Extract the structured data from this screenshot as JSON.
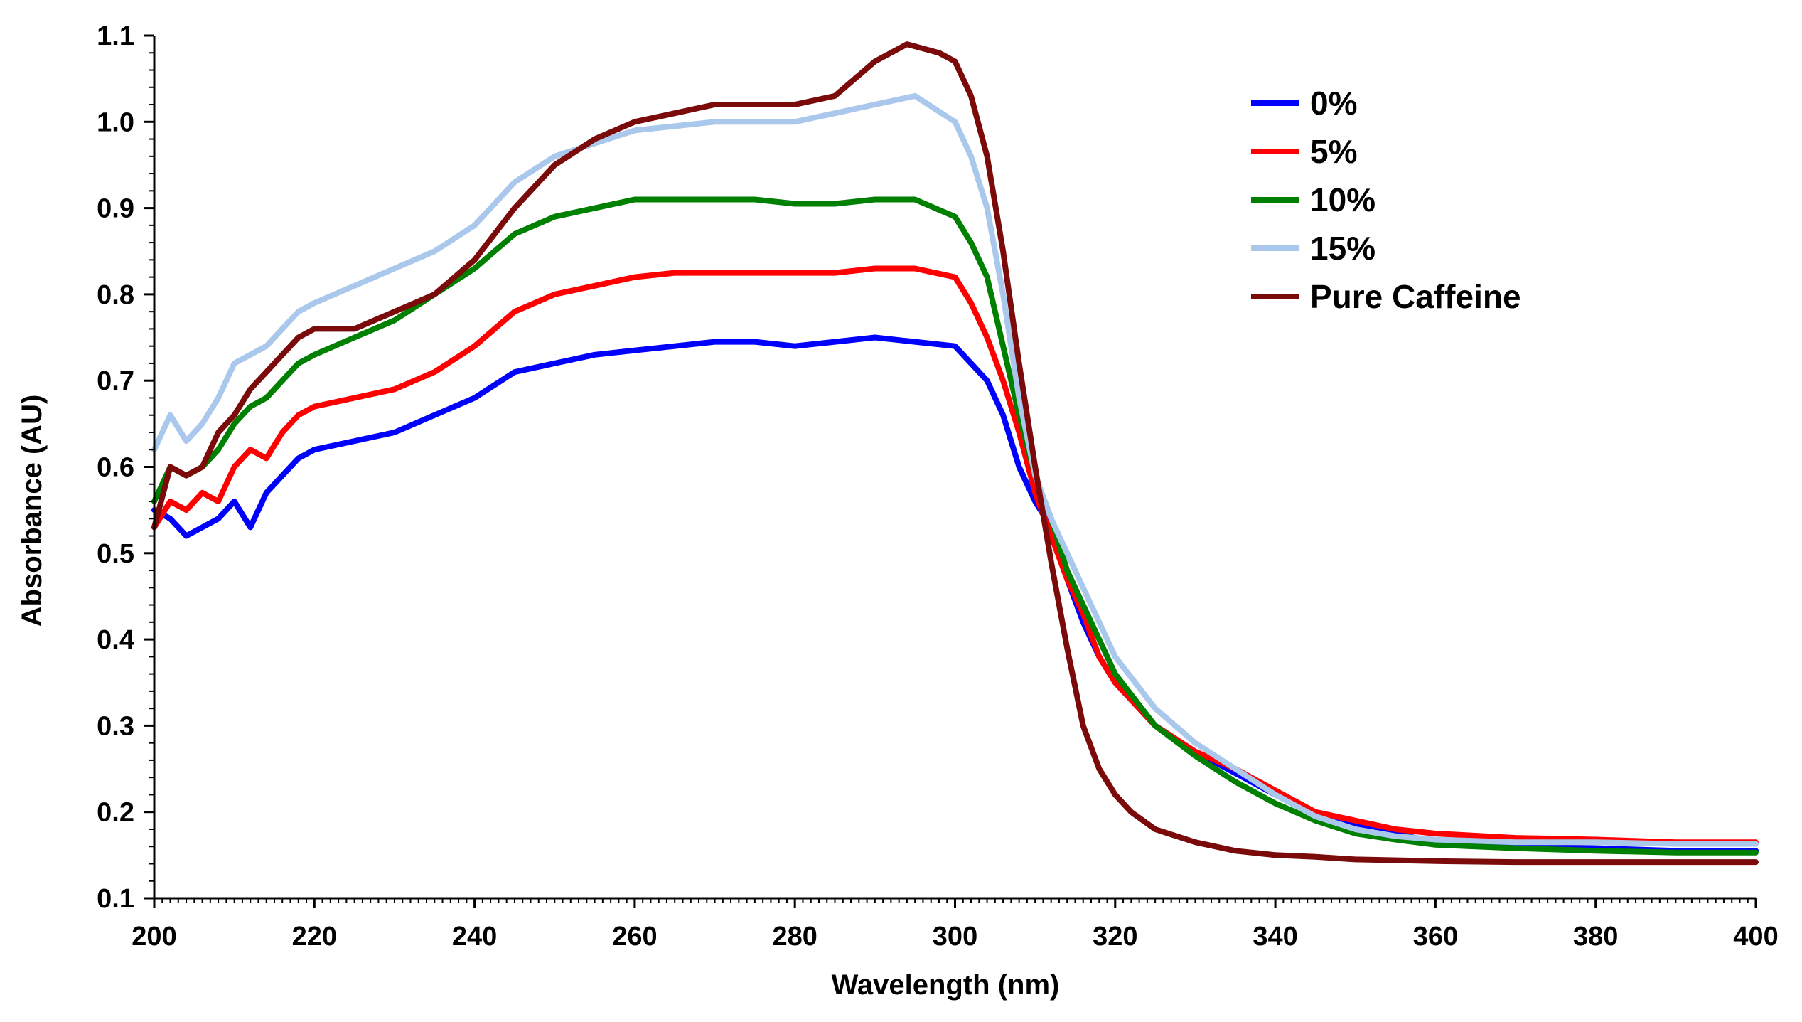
{
  "chart_data": {
    "type": "line",
    "title": "",
    "xlabel": "Wavelength (nm)",
    "ylabel": "Absorbance (AU)",
    "xlim": [
      200,
      400
    ],
    "ylim": [
      0.1,
      1.1
    ],
    "xticks": [
      200,
      220,
      240,
      260,
      280,
      300,
      320,
      340,
      360,
      380,
      400
    ],
    "xtick_labels": [
      "200",
      "220",
      "240",
      "260",
      "280",
      "300",
      "320",
      "340",
      "360",
      "380",
      "400"
    ],
    "yticks": [
      0.1,
      0.2,
      0.3,
      0.4,
      0.5,
      0.6,
      0.7,
      0.8,
      0.9,
      1.0,
      1.1
    ],
    "ytick_labels": [
      "0.1",
      "0.2",
      "0.3",
      "0.4",
      "0.5",
      "0.6",
      "0.7",
      "0.8",
      "0.9",
      "1.0",
      "1.1"
    ],
    "grid": false,
    "legend_position": "top-right",
    "series": [
      {
        "name": "0%",
        "color": "#0000FF",
        "x": [
          200,
          202,
          204,
          206,
          208,
          210,
          212,
          214,
          216,
          218,
          220,
          225,
          230,
          235,
          240,
          245,
          250,
          255,
          260,
          265,
          270,
          275,
          280,
          285,
          290,
          295,
          300,
          302,
          304,
          306,
          308,
          310,
          312,
          314,
          316,
          318,
          320,
          325,
          330,
          335,
          340,
          345,
          350,
          355,
          360,
          370,
          380,
          390,
          400
        ],
        "y": [
          0.55,
          0.54,
          0.52,
          0.53,
          0.54,
          0.56,
          0.53,
          0.57,
          0.59,
          0.61,
          0.62,
          0.63,
          0.64,
          0.66,
          0.68,
          0.71,
          0.72,
          0.73,
          0.735,
          0.74,
          0.745,
          0.745,
          0.74,
          0.745,
          0.75,
          0.745,
          0.74,
          0.72,
          0.7,
          0.66,
          0.6,
          0.56,
          0.53,
          0.47,
          0.42,
          0.38,
          0.35,
          0.3,
          0.27,
          0.245,
          0.22,
          0.2,
          0.185,
          0.175,
          0.165,
          0.16,
          0.158,
          0.155,
          0.155
        ]
      },
      {
        "name": "5%",
        "color": "#FF0000",
        "x": [
          200,
          202,
          204,
          206,
          208,
          210,
          212,
          214,
          216,
          218,
          220,
          225,
          230,
          235,
          240,
          245,
          250,
          255,
          260,
          265,
          270,
          275,
          280,
          285,
          290,
          295,
          300,
          302,
          304,
          306,
          308,
          310,
          312,
          314,
          316,
          318,
          320,
          325,
          330,
          335,
          340,
          345,
          350,
          355,
          360,
          370,
          380,
          390,
          400
        ],
        "y": [
          0.53,
          0.56,
          0.55,
          0.57,
          0.56,
          0.6,
          0.62,
          0.61,
          0.64,
          0.66,
          0.67,
          0.68,
          0.69,
          0.71,
          0.74,
          0.78,
          0.8,
          0.81,
          0.82,
          0.825,
          0.825,
          0.825,
          0.825,
          0.825,
          0.83,
          0.83,
          0.82,
          0.79,
          0.75,
          0.7,
          0.64,
          0.57,
          0.52,
          0.47,
          0.43,
          0.38,
          0.35,
          0.3,
          0.27,
          0.25,
          0.225,
          0.2,
          0.19,
          0.18,
          0.175,
          0.17,
          0.168,
          0.165,
          0.165
        ]
      },
      {
        "name": "10%",
        "color": "#008000",
        "x": [
          200,
          202,
          204,
          206,
          208,
          210,
          212,
          214,
          216,
          218,
          220,
          225,
          230,
          235,
          240,
          245,
          250,
          255,
          260,
          265,
          270,
          275,
          280,
          285,
          290,
          295,
          300,
          302,
          304,
          306,
          308,
          310,
          312,
          314,
          316,
          318,
          320,
          325,
          330,
          335,
          340,
          345,
          350,
          355,
          360,
          370,
          380,
          390,
          400
        ],
        "y": [
          0.56,
          0.6,
          0.59,
          0.6,
          0.62,
          0.65,
          0.67,
          0.68,
          0.7,
          0.72,
          0.73,
          0.75,
          0.77,
          0.8,
          0.83,
          0.87,
          0.89,
          0.9,
          0.91,
          0.91,
          0.91,
          0.91,
          0.905,
          0.905,
          0.91,
          0.91,
          0.89,
          0.86,
          0.82,
          0.74,
          0.66,
          0.59,
          0.54,
          0.48,
          0.44,
          0.4,
          0.36,
          0.3,
          0.265,
          0.235,
          0.21,
          0.19,
          0.175,
          0.168,
          0.162,
          0.158,
          0.155,
          0.153,
          0.153
        ]
      },
      {
        "name": "15%",
        "color": "#A9C8EC",
        "x": [
          200,
          202,
          204,
          206,
          208,
          210,
          212,
          214,
          216,
          218,
          220,
          225,
          230,
          235,
          240,
          245,
          250,
          255,
          260,
          265,
          270,
          275,
          280,
          285,
          290,
          295,
          300,
          302,
          304,
          306,
          308,
          310,
          312,
          314,
          316,
          318,
          320,
          325,
          330,
          335,
          340,
          345,
          350,
          355,
          360,
          370,
          380,
          390,
          400
        ],
        "y": [
          0.62,
          0.66,
          0.63,
          0.65,
          0.68,
          0.72,
          0.73,
          0.74,
          0.76,
          0.78,
          0.79,
          0.81,
          0.83,
          0.85,
          0.88,
          0.93,
          0.96,
          0.975,
          0.99,
          0.995,
          1.0,
          1.0,
          1.0,
          1.01,
          1.02,
          1.03,
          1.0,
          0.96,
          0.9,
          0.8,
          0.68,
          0.59,
          0.54,
          0.5,
          0.46,
          0.42,
          0.38,
          0.32,
          0.28,
          0.25,
          0.22,
          0.195,
          0.18,
          0.172,
          0.168,
          0.165,
          0.165,
          0.163,
          0.163
        ]
      },
      {
        "name": "Pure Caffeine",
        "color": "#7B0A0A",
        "x": [
          200,
          202,
          204,
          206,
          208,
          210,
          212,
          214,
          216,
          218,
          220,
          225,
          230,
          235,
          240,
          245,
          250,
          255,
          260,
          265,
          270,
          275,
          280,
          285,
          290,
          294,
          298,
          300,
          302,
          304,
          306,
          308,
          310,
          312,
          314,
          316,
          318,
          320,
          322,
          325,
          330,
          335,
          340,
          345,
          350,
          360,
          370,
          380,
          390,
          400
        ],
        "y": [
          0.53,
          0.6,
          0.59,
          0.6,
          0.64,
          0.66,
          0.69,
          0.71,
          0.73,
          0.75,
          0.76,
          0.76,
          0.78,
          0.8,
          0.84,
          0.9,
          0.95,
          0.98,
          1.0,
          1.01,
          1.02,
          1.02,
          1.02,
          1.03,
          1.07,
          1.09,
          1.08,
          1.07,
          1.03,
          0.96,
          0.85,
          0.72,
          0.6,
          0.49,
          0.39,
          0.3,
          0.25,
          0.22,
          0.2,
          0.18,
          0.165,
          0.155,
          0.15,
          0.148,
          0.145,
          0.143,
          0.142,
          0.142,
          0.142,
          0.142
        ]
      }
    ]
  }
}
